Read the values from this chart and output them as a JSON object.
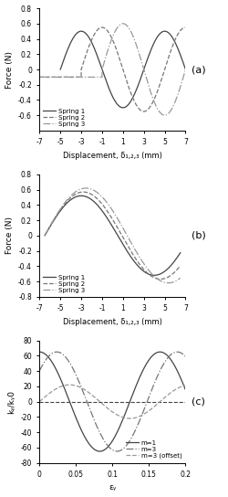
{
  "panel_a": {
    "xlabel": "Displacement, δ₁,₂,₃ (mm)",
    "ylabel": "Force (N)",
    "xlim": [
      -7,
      7
    ],
    "ylim": [
      -0.8,
      0.8
    ],
    "xticks": [
      -7,
      -5,
      -3,
      -1,
      1,
      3,
      5,
      7
    ],
    "yticks": [
      -0.6,
      -0.4,
      -0.2,
      0,
      0.2,
      0.4,
      0.6,
      0.8
    ],
    "label": "(a)"
  },
  "panel_b": {
    "xlabel": "Displacement, δ₁,₂,₃ (mm)",
    "ylabel": "Force (N)",
    "xlim": [
      -7,
      7
    ],
    "ylim": [
      -0.8,
      0.8
    ],
    "xticks": [
      -7,
      -5,
      -3,
      -1,
      1,
      3,
      5,
      7
    ],
    "yticks": [
      -0.8,
      -0.6,
      -0.4,
      -0.2,
      0,
      0.2,
      0.4,
      0.6,
      0.8
    ],
    "label": "(b)"
  },
  "panel_c": {
    "xlabel": "εᵧ",
    "ylabel": "kᵧ/kᵧ0",
    "xlim": [
      0,
      0.2
    ],
    "ylim": [
      -80,
      80
    ],
    "xticks": [
      0,
      0.05,
      0.1,
      0.15,
      0.2
    ],
    "yticks": [
      -80,
      -60,
      -40,
      -20,
      0,
      20,
      40,
      60,
      80
    ],
    "label": "(c)"
  }
}
